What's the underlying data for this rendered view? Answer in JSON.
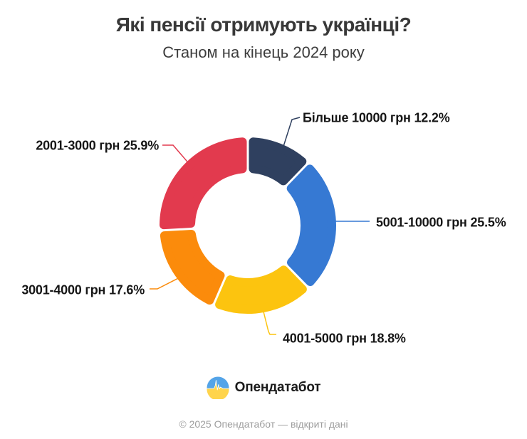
{
  "title": "Які пенсії отримують українці?",
  "subtitle": "Станом на кінець 2024 року",
  "chart_data": {
    "type": "pie",
    "subtype": "donut",
    "direction": "clockwise",
    "start_angle_deg": 0,
    "unit": "%",
    "total": 100,
    "slices": [
      {
        "label": "Більше 10000 грн",
        "value": 12.2,
        "display": "Більше 10000 грн 12.2%",
        "color": "#2F405F"
      },
      {
        "label": "5001-10000 грн",
        "value": 25.5,
        "display": "5001-10000 грн 25.5%",
        "color": "#3679D3"
      },
      {
        "label": "4001-5000 грн",
        "value": 18.8,
        "display": "4001-5000 грн 18.8%",
        "color": "#FCC40F"
      },
      {
        "label": "3001-4000 грн",
        "value": 17.6,
        "display": "3001-4000 грн 17.6%",
        "color": "#FB8B0B"
      },
      {
        "label": "2001-3000 грн",
        "value": 25.9,
        "display": "2001-3000 грн 25.9%",
        "color": "#E23A4E"
      }
    ]
  },
  "logo": {
    "text": "Опендатабот",
    "flag_blue": "#54A4E8",
    "flag_yellow": "#FFD44C"
  },
  "footer": "© 2025 Опендатабот — відкриті дані"
}
